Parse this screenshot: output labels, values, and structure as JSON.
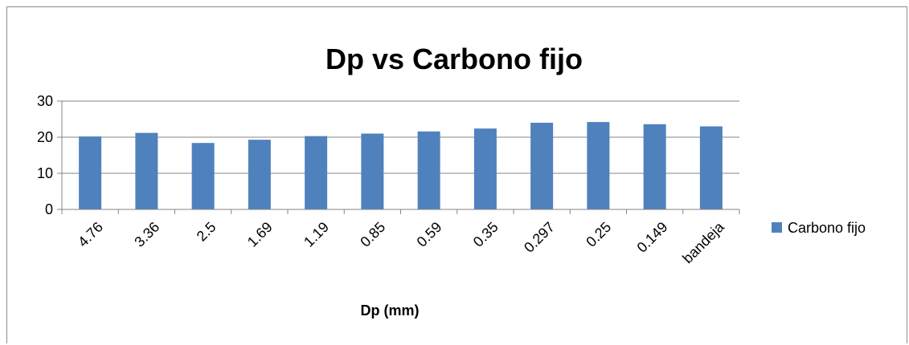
{
  "chart_data": {
    "type": "bar",
    "title": "Dp vs Carbono fijo",
    "xlabel": "Dp (mm)",
    "ylabel": "",
    "categories": [
      "4.76",
      "3.36",
      "2.5",
      "1.69",
      "1.19",
      "0.85",
      "0.59",
      "0.35",
      "0.297",
      "0.25",
      "0.149",
      "bandeja"
    ],
    "series": [
      {
        "name": "Carbono fijo",
        "color": "#4f81bd",
        "values": [
          20.2,
          21.2,
          18.4,
          19.3,
          20.3,
          21.0,
          21.6,
          22.4,
          24.0,
          24.2,
          23.6,
          23.0
        ]
      }
    ],
    "ylim": [
      0,
      30
    ],
    "yticks": [
      "0",
      "10",
      "20",
      "30"
    ],
    "grid": true,
    "legend_position": "right"
  }
}
